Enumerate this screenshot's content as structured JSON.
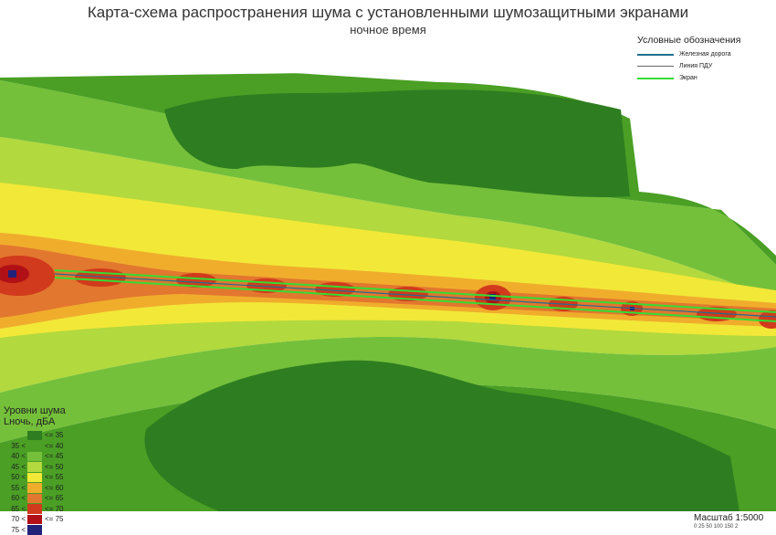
{
  "title": "Карта-схема распространения шума с установленными шумозащитными экранами",
  "subtitle": "ночное время",
  "legend_lines": {
    "header": "Условные обозначения",
    "items": [
      {
        "label": "Железная дорога",
        "color": "#1f6f8f"
      },
      {
        "label": "Линия ПДУ",
        "color": "#666666"
      },
      {
        "label": "Экран",
        "color": "#33dd33"
      }
    ]
  },
  "noise_legend": {
    "header_line1": "Уровни шума",
    "header_line2": "Lночь, дБА",
    "bands": [
      {
        "lo": "",
        "hi": "<= 35",
        "color": "#2f7d21"
      },
      {
        "lo": "35 <",
        "hi": "<= 40",
        "color": "#4a9f24"
      },
      {
        "lo": "40 <",
        "hi": "<= 45",
        "color": "#74c03a"
      },
      {
        "lo": "45 <",
        "hi": "<= 50",
        "color": "#b2d93d"
      },
      {
        "lo": "50 <",
        "hi": "<= 55",
        "color": "#f2e838"
      },
      {
        "lo": "55 <",
        "hi": "<= 60",
        "color": "#f0ad2c"
      },
      {
        "lo": "60 <",
        "hi": "<= 65",
        "color": "#e2772f"
      },
      {
        "lo": "65 <",
        "hi": "<= 70",
        "color": "#d13a1c"
      },
      {
        "lo": "70 <",
        "hi": "<= 75",
        "color": "#b01016"
      },
      {
        "lo": "75 <",
        "hi": "",
        "color": "#22227a"
      }
    ]
  },
  "scale": {
    "label": "Масштаб 1:5000",
    "ticks": "0  25 50     100    150   2"
  }
}
